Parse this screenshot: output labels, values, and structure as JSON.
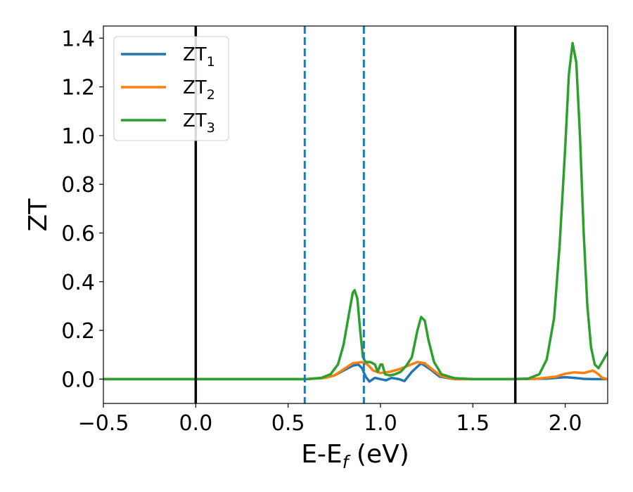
{
  "chart_data": {
    "type": "line",
    "xlabel": {
      "main": "E-E",
      "sub": "f",
      "rest": " (eV)"
    },
    "ylabel": "ZT",
    "xlim": [
      -0.5,
      2.23
    ],
    "ylim": [
      -0.1,
      1.45
    ],
    "xticks": [
      -0.5,
      0.0,
      0.5,
      1.0,
      1.5,
      2.0
    ],
    "xtick_labels": [
      "−0.5",
      "0.0",
      "0.5",
      "1.0",
      "1.5",
      "2.0"
    ],
    "yticks": [
      0.0,
      0.2,
      0.4,
      0.6,
      0.8,
      1.0,
      1.2,
      1.4
    ],
    "ytick_labels": [
      "0.0",
      "0.2",
      "0.4",
      "0.6",
      "0.8",
      "1.0",
      "1.2",
      "1.4"
    ],
    "grid": false,
    "legend_position": "upper-left",
    "vlines": [
      {
        "x": 0.0,
        "color": "#000000",
        "style": "solid"
      },
      {
        "x": 1.73,
        "color": "#000000",
        "style": "solid"
      },
      {
        "x": 0.59,
        "color": "#1f77b4",
        "style": "dashed"
      },
      {
        "x": 0.91,
        "color": "#1f77b4",
        "style": "dashed"
      }
    ],
    "series": [
      {
        "name": "ZT",
        "sub": "1",
        "color": "#1f77b4",
        "points": [
          [
            -0.5,
            0
          ],
          [
            0.6,
            0
          ],
          [
            0.7,
            0.005
          ],
          [
            0.75,
            0.015
          ],
          [
            0.8,
            0.035
          ],
          [
            0.85,
            0.055
          ],
          [
            0.88,
            0.06
          ],
          [
            0.9,
            0.045
          ],
          [
            0.92,
            0.01
          ],
          [
            0.94,
            -0.01
          ],
          [
            0.97,
            0.005
          ],
          [
            1.0,
            0.0
          ],
          [
            1.03,
            -0.005
          ],
          [
            1.06,
            0.005
          ],
          [
            1.1,
            0.0
          ],
          [
            1.13,
            -0.008
          ],
          [
            1.17,
            0.03
          ],
          [
            1.22,
            0.065
          ],
          [
            1.27,
            0.04
          ],
          [
            1.32,
            0.01
          ],
          [
            1.4,
            0
          ],
          [
            1.7,
            0
          ],
          [
            1.9,
            0.002
          ],
          [
            2.0,
            0.008
          ],
          [
            2.05,
            0.005
          ],
          [
            2.1,
            0.001
          ],
          [
            2.15,
            0
          ],
          [
            2.23,
            0
          ]
        ]
      },
      {
        "name": "ZT",
        "sub": "2",
        "color": "#ff7f0e",
        "points": [
          [
            -0.5,
            0
          ],
          [
            0.6,
            0
          ],
          [
            0.7,
            0.005
          ],
          [
            0.75,
            0.015
          ],
          [
            0.8,
            0.04
          ],
          [
            0.85,
            0.065
          ],
          [
            0.9,
            0.07
          ],
          [
            0.93,
            0.06
          ],
          [
            0.96,
            0.035
          ],
          [
            1.0,
            0.025
          ],
          [
            1.05,
            0.03
          ],
          [
            1.1,
            0.04
          ],
          [
            1.15,
            0.055
          ],
          [
            1.2,
            0.07
          ],
          [
            1.24,
            0.065
          ],
          [
            1.28,
            0.04
          ],
          [
            1.33,
            0.012
          ],
          [
            1.4,
            0
          ],
          [
            1.75,
            0
          ],
          [
            1.85,
            0.002
          ],
          [
            1.95,
            0.01
          ],
          [
            2.0,
            0.022
          ],
          [
            2.05,
            0.028
          ],
          [
            2.1,
            0.025
          ],
          [
            2.15,
            0.035
          ],
          [
            2.18,
            0.02
          ],
          [
            2.2,
            0.005
          ],
          [
            2.23,
            0
          ]
        ]
      },
      {
        "name": "ZT",
        "sub": "3",
        "color": "#2ca02c",
        "points": [
          [
            -0.5,
            0
          ],
          [
            0.6,
            0
          ],
          [
            0.68,
            0.005
          ],
          [
            0.73,
            0.02
          ],
          [
            0.77,
            0.06
          ],
          [
            0.8,
            0.14
          ],
          [
            0.83,
            0.27
          ],
          [
            0.85,
            0.355
          ],
          [
            0.86,
            0.365
          ],
          [
            0.875,
            0.33
          ],
          [
            0.89,
            0.2
          ],
          [
            0.905,
            0.09
          ],
          [
            0.92,
            0.07
          ],
          [
            0.945,
            0.07
          ],
          [
            0.97,
            0.06
          ],
          [
            0.985,
            0.03
          ],
          [
            1.0,
            0.06
          ],
          [
            1.01,
            0.06
          ],
          [
            1.025,
            0.02
          ],
          [
            1.05,
            0.015
          ],
          [
            1.08,
            0.02
          ],
          [
            1.11,
            0.03
          ],
          [
            1.14,
            0.055
          ],
          [
            1.17,
            0.09
          ],
          [
            1.2,
            0.2
          ],
          [
            1.22,
            0.255
          ],
          [
            1.24,
            0.24
          ],
          [
            1.26,
            0.16
          ],
          [
            1.29,
            0.07
          ],
          [
            1.33,
            0.02
          ],
          [
            1.4,
            0.004
          ],
          [
            1.5,
            0
          ],
          [
            1.7,
            0
          ],
          [
            1.8,
            0.002
          ],
          [
            1.86,
            0.02
          ],
          [
            1.9,
            0.08
          ],
          [
            1.94,
            0.25
          ],
          [
            1.97,
            0.55
          ],
          [
            2.0,
            0.95
          ],
          [
            2.02,
            1.25
          ],
          [
            2.04,
            1.38
          ],
          [
            2.06,
            1.3
          ],
          [
            2.08,
            1.0
          ],
          [
            2.1,
            0.6
          ],
          [
            2.12,
            0.3
          ],
          [
            2.14,
            0.13
          ],
          [
            2.16,
            0.06
          ],
          [
            2.18,
            0.045
          ],
          [
            2.2,
            0.07
          ],
          [
            2.23,
            0.11
          ]
        ]
      }
    ]
  }
}
